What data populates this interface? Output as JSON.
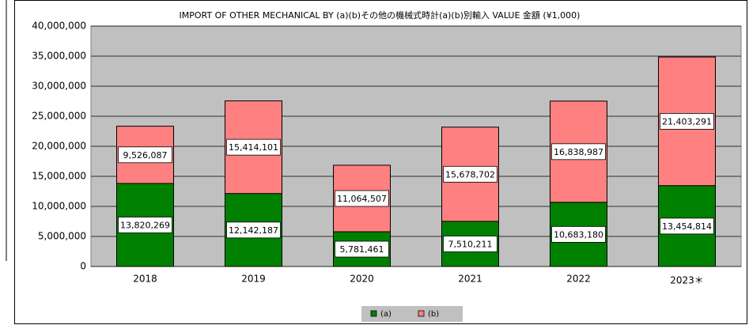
{
  "chart_data": {
    "type": "stacked_bar",
    "title": "IMPORT OF OTHER MECHANICAL BY (a)(b)その他の機械式時計(a)(b)別輸入  VALUE  金額 (¥1,000)",
    "categories": [
      "2018",
      "2019",
      "2020",
      "2021",
      "2022",
      "2023＊"
    ],
    "series": [
      {
        "name": "(a)",
        "color": "#008000",
        "values": [
          13820269,
          12142187,
          5781461,
          7510211,
          10683180,
          13454814
        ],
        "value_labels": [
          "13,820,269",
          "12,142,187",
          "5,781,461",
          "7,510,211",
          "10,683,180",
          "13,454,814"
        ]
      },
      {
        "name": "(b)",
        "color": "#ff8080",
        "values": [
          9526087,
          15414101,
          11064507,
          15678702,
          16838987,
          21403291
        ],
        "value_labels": [
          "9,526,087",
          "15,414,101",
          "11,064,507",
          "15,678,702",
          "16,838,987",
          "21,403,291"
        ]
      }
    ],
    "ylim": [
      0,
      40000000
    ],
    "yticks": [
      0,
      {
        "value": 5000000,
        "label": "5,000,000"
      },
      {
        "value": 10000000,
        "label": "10,000,000"
      },
      {
        "value": 15000000,
        "label": "15,000,000"
      },
      {
        "value": 20000000,
        "label": "20,000,000"
      },
      {
        "value": 25000000,
        "label": "25,000,000"
      },
      {
        "value": 30000000,
        "label": "30,000,000"
      },
      {
        "value": 35000000,
        "label": "35,000,000"
      },
      {
        "value": 40000000,
        "label": "40,000,000"
      }
    ],
    "grid": true,
    "legend": "bottom"
  }
}
